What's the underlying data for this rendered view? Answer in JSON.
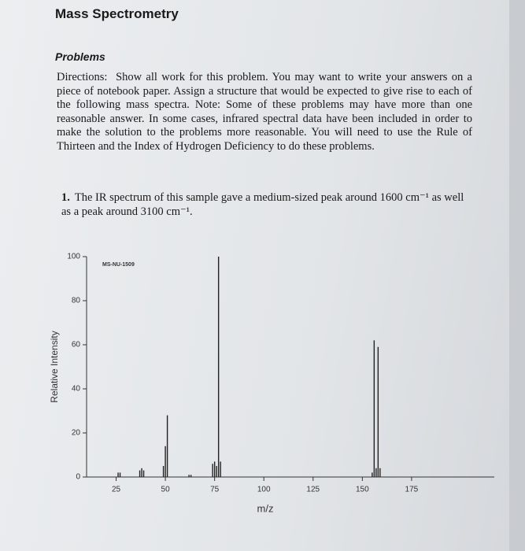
{
  "header": {
    "title": "Mass Spectrometry"
  },
  "section": "Problems",
  "directions": {
    "label": "Directions:",
    "text": "Show all work for this problem. You may want to write your answers on a piece of notebook paper. Assign a structure that would be expected to give rise to each of the following mass spectra. Note: Some of these problems may have more than one reasonable answer. In some cases, infrared spectral data have been included in order to make the solution to the problems more reasonable. You will need to use the Rule of Thirteen and the Index of Hydrogen Deficiency to do these problems."
  },
  "problem": {
    "number": "1.",
    "text": "The IR spectrum of this sample gave a medium-sized peak around 1600 cm⁻¹ as well as a peak around 3100 cm⁻¹."
  },
  "chart_data": {
    "type": "bar",
    "code": "MS-NU-1509",
    "xlabel": "m/z",
    "ylabel": "Relative Intensity",
    "x": [
      26,
      27,
      37,
      38,
      39,
      49,
      50,
      51,
      62,
      63,
      74,
      75,
      76,
      77,
      78,
      155,
      156,
      157,
      158,
      159
    ],
    "values": [
      2,
      2,
      3,
      4,
      3,
      5,
      14,
      28,
      1,
      1,
      6,
      7,
      5,
      100,
      7,
      2,
      62,
      4,
      59,
      4
    ],
    "color": "#222222",
    "xlim": [
      10,
      217
    ],
    "ylim": [
      0,
      100
    ],
    "xticks": [
      25,
      50,
      75,
      100,
      125,
      150,
      175
    ],
    "yticks": [
      0,
      20,
      40,
      60,
      80,
      100
    ]
  }
}
